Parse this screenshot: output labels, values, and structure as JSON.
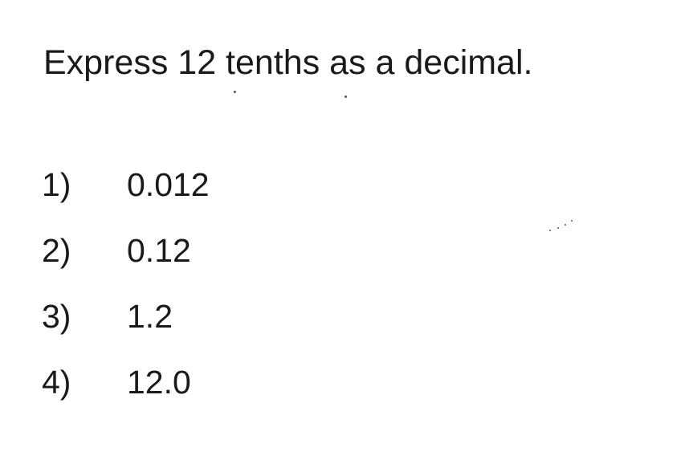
{
  "question": {
    "text": "Express 12 tenths as a decimal."
  },
  "choices": [
    {
      "number": "1)",
      "value": "0.012"
    },
    {
      "number": "2)",
      "value": "0.12"
    },
    {
      "number": "3)",
      "value": "1.2"
    },
    {
      "number": "4)",
      "value": "12.0"
    }
  ]
}
